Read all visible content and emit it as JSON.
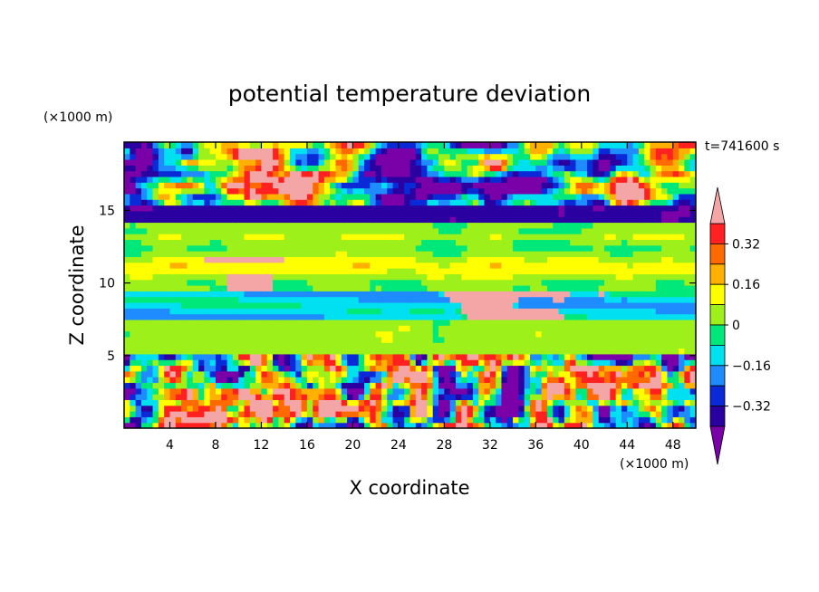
{
  "chart_data": {
    "type": "heatmap",
    "title": "potential temperature deviation",
    "xlabel": "X coordinate",
    "ylabel": "Z coordinate",
    "x_unit": "(×1000 m)",
    "y_unit": "(×1000 m)",
    "time_label": "t=741600 s",
    "xlim": [
      0,
      50
    ],
    "ylim": [
      0,
      19.7
    ],
    "x_ticks": [
      4,
      8,
      12,
      16,
      20,
      24,
      28,
      32,
      36,
      40,
      44,
      48
    ],
    "y_ticks": [
      5,
      10,
      15
    ],
    "colorbar": {
      "levels": [
        -0.4,
        -0.32,
        -0.24,
        -0.16,
        -0.08,
        0,
        0.08,
        0.16,
        0.24,
        0.32,
        0.4
      ],
      "colors": [
        "#7a00a8",
        "#2b00a0",
        "#0a2ad8",
        "#1e8cff",
        "#00e0f0",
        "#00e87a",
        "#9ef01a",
        "#ffff00",
        "#ffb000",
        "#ff6a00",
        "#ff2020",
        "#f4a6a6"
      ],
      "tick_labels": [
        "0.32",
        "0.16",
        "0",
        "-0.16",
        "-0.32"
      ],
      "tick_values": [
        0.32,
        0.16,
        0,
        -0.16,
        -0.32
      ],
      "extend": "both"
    },
    "field_description_bands": [
      {
        "z_range": [
          15.5,
          19.7
        ],
        "value_mix": [
          "-0.4",
          "0.4"
        ]
      },
      {
        "z_range": [
          14.0,
          15.0
        ],
        "value_mix": [
          "-0.4"
        ]
      },
      {
        "z_range": [
          9.5,
          13.5
        ],
        "value_mix": [
          "0",
          "0.08"
        ]
      },
      {
        "z_range": [
          7.5,
          9.0
        ],
        "value_mix": [
          "-0.16",
          "-0.08"
        ]
      },
      {
        "z_range": [
          5.0,
          7.5
        ],
        "value_mix": [
          "0",
          "0.08"
        ]
      },
      {
        "z_range": [
          0,
          5.0
        ],
        "value_mix": [
          "-0.4",
          "0.4"
        ]
      }
    ]
  }
}
